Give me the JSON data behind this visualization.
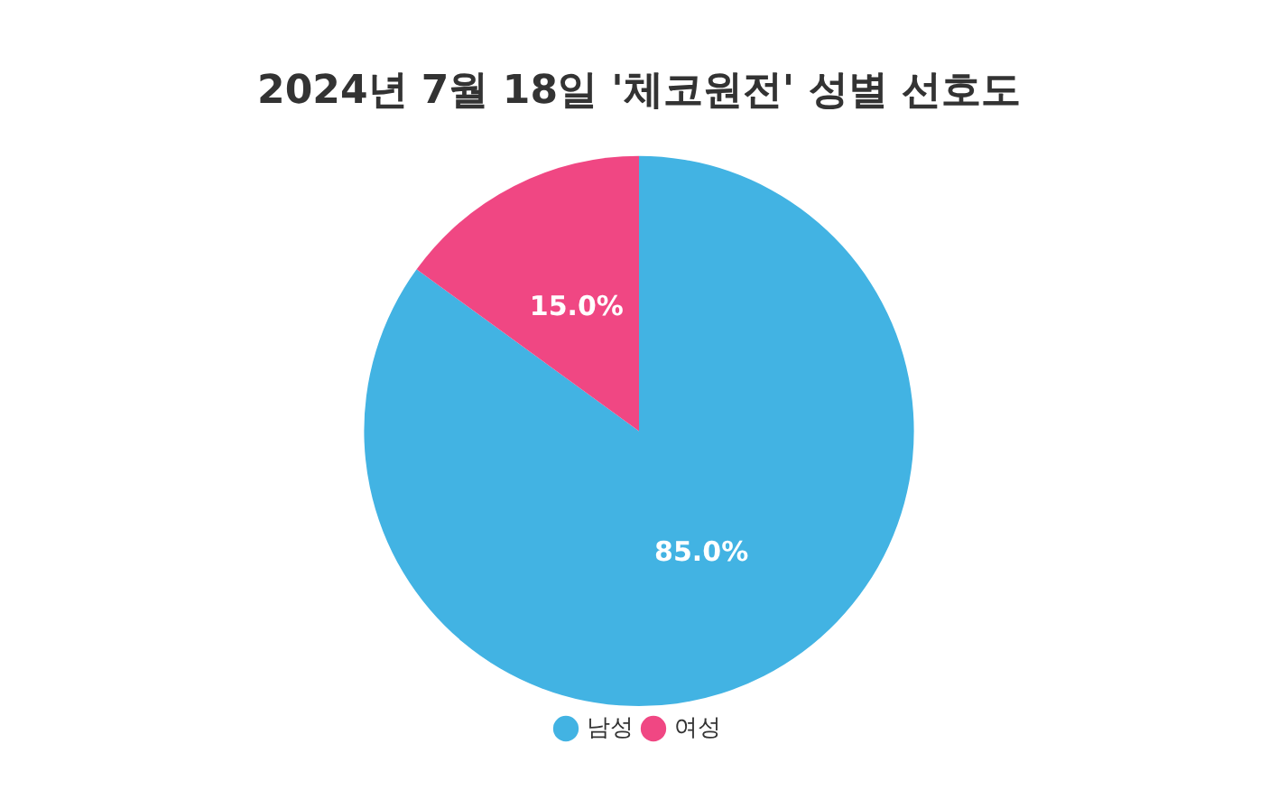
{
  "chart_data": {
    "type": "pie",
    "title": "2024년 7월 18일 '체코원전' 성별 선호도",
    "categories": [
      "남성",
      "여성"
    ],
    "values": [
      85.0,
      15.0
    ],
    "colors": [
      "#42b3e3",
      "#f04783"
    ],
    "value_labels": [
      "85.0%",
      "15.0%"
    ],
    "legend": "bottom"
  }
}
